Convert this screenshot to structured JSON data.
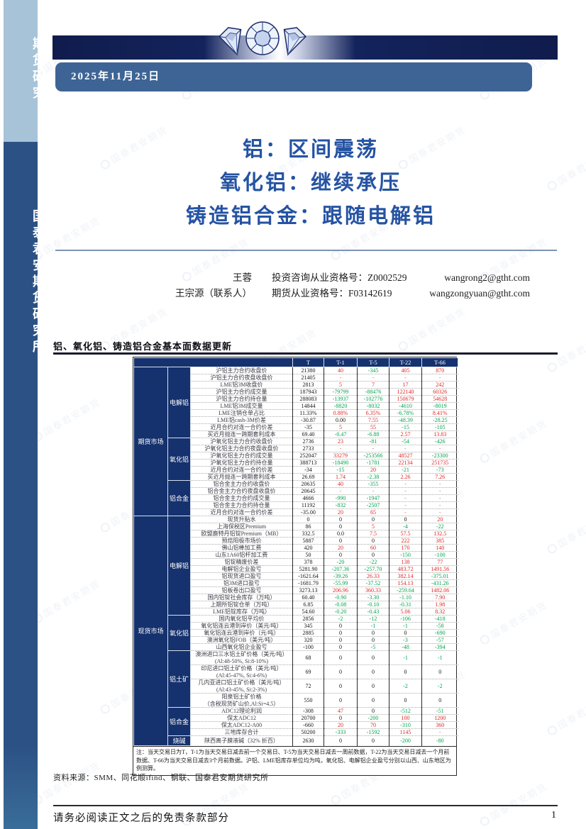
{
  "sidebar": {
    "top_label": "期货研究",
    "bottom_label": "国泰君安期货研究所"
  },
  "header": {
    "date": "2025年11月25日",
    "gem_icon": "diamond-gems"
  },
  "titles": {
    "line1": "铝：区间震荡",
    "line2": "氧化铝：继续承压",
    "line3": "铸造铝合金：跟随电解铝"
  },
  "authors": [
    {
      "name": "王蓉",
      "cert": "投资咨询从业资格号：Z0002529",
      "email": "wangrong2@gtht.com"
    },
    {
      "name": "王宗源（联系人）",
      "cert": "期货从业资格号：F03142619",
      "email": "wangzongyuan@gtht.com"
    }
  ],
  "table": {
    "caption": "铝、氧化铝、铸造铝合金基本面数据更新",
    "columns": [
      "T",
      "T-1",
      "T-5",
      "T-22",
      "T-66"
    ],
    "groups": [
      {
        "label": "期货市场",
        "subgroups": [
          {
            "label": "电解铝",
            "rows": [
              {
                "label": "沪铝主力合约收盘价",
                "cells": [
                  "21380|k",
                  "40|r",
                  "-345|g",
                  "405|r",
                  "870|r"
                ]
              },
              {
                "label": "沪铝主力合约夜盘收盘价",
                "cells": [
                  "21405|k",
                  "-|d",
                  "-|d",
                  "-|d",
                  "-|d"
                ]
              },
              {
                "label": "LME铝3M收盘价",
                "cells": [
                  "2813|k",
                  "5|r",
                  "7|r",
                  "17|r",
                  "242|r"
                ]
              },
              {
                "label": "沪铝主力合约成交量",
                "cells": [
                  "187943|k",
                  "-79799|g",
                  "-88476|g",
                  "122140|r",
                  "60326|r"
                ]
              },
              {
                "label": "沪铝主力合约持仓量",
                "cells": [
                  "288083|k",
                  "-13937|g",
                  "-102776|g",
                  "150679|r",
                  "54628|r"
                ]
              },
              {
                "label": "LME铝3M成交量",
                "cells": [
                  "14844|k",
                  "-8820|g",
                  "-8032|g",
                  "-4610|g",
                  "-8019|g"
                ]
              },
              {
                "label": "LME注销仓单占比",
                "cells": [
                  "11.33%|k",
                  "0.88%|r",
                  "6.35%|r",
                  "-6.78%|g",
                  "8.41%|r"
                ]
              },
              {
                "label": "LME铝cash-3M价差",
                "cells": [
                  "-30.87|k",
                  "0.00|k",
                  "7.55|r",
                  "-48.39|g",
                  "-28.25|g"
                ]
              },
              {
                "label": "近月合约对连一合约价差",
                "cells": [
                  "-35|k",
                  "5|r",
                  "55|r",
                  "-15|g",
                  "-105|g"
                ]
              },
              {
                "label": "买近月抛连一跨期套利成本",
                "cells": [
                  "69.40|k",
                  "-0.47|g",
                  "-6.88|g",
                  "2.57|r",
                  "13.83|r"
                ]
              }
            ]
          },
          {
            "label": "氧化铝",
            "rows": [
              {
                "label": "沪氧化铝主力合约收盘价",
                "cells": [
                  "2736|k",
                  "23|r",
                  "-81|g",
                  "-54|g",
                  "-426|g"
                ]
              },
              {
                "label": "沪氧化铝主力合约夜盘收盘价",
                "cells": [
                  "2733|k",
                  "-|d",
                  "-|d",
                  "-|d",
                  "-|d"
                ]
              },
              {
                "label": "沪氧化铝主力合约成交量",
                "cells": [
                  "252047|k",
                  "33279|r",
                  "-253566|g",
                  "48527|r",
                  "-23300|g"
                ]
              },
              {
                "label": "沪氧化铝主力合约持仓量",
                "cells": [
                  "388713|k",
                  "-18490|g",
                  "-1781|g",
                  "22134|r",
                  "251735|r"
                ]
              },
              {
                "label": "近月合约对连一合约价差",
                "cells": [
                  "-34|k",
                  "-15|g",
                  "20|r",
                  "-21|g",
                  "-73|g"
                ]
              },
              {
                "label": "买近月抛连一跨期套利成本",
                "cells": [
                  "26.69|k",
                  "1.74|r",
                  "-2.38|g",
                  "2.26|r",
                  "7.26|r"
                ]
              }
            ]
          },
          {
            "label": "铝合金",
            "rows": [
              {
                "label": "铝合金主力合约收盘价",
                "cells": [
                  "20635|k",
                  "40|r",
                  "-355|g",
                  "-|d",
                  "-|d"
                ]
              },
              {
                "label": "铝合金主力合约夜盘收盘价",
                "cells": [
                  "20645|k",
                  "-|d",
                  "-|d",
                  "-|d",
                  "-|d"
                ]
              },
              {
                "label": "铝合金主力合约成交量",
                "cells": [
                  "4666|k",
                  "-990|g",
                  "-1947|g",
                  "-|d",
                  "-|d"
                ]
              },
              {
                "label": "铝合金主力合约持仓量",
                "cells": [
                  "11192|k",
                  "-832|g",
                  "-2507|g",
                  "-|d",
                  "-|d"
                ]
              },
              {
                "label": "近月合约对连一合约价差",
                "cells": [
                  "-35.00|k",
                  "20|r",
                  "65|r",
                  "-|d",
                  "-|d"
                ]
              }
            ]
          }
        ]
      },
      {
        "label": "现货市场",
        "subgroups": [
          {
            "label": "电解铝",
            "rows": [
              {
                "label": "现货升贴水",
                "cells": [
                  "0|k",
                  "0|k",
                  "0|k",
                  "0|k",
                  "20|r"
                ]
              },
              {
                "label": "上海保税区Premium",
                "cells": [
                  "86|k",
                  "0|k",
                  "5|r",
                  "-4|g",
                  "-22|g"
                ]
              },
              {
                "label": "欧盟鹿特丹铝锭Premium（MB）",
                "cells": [
                  "332.5|k",
                  "0.0|k",
                  "7.5|r",
                  "57.5|r",
                  "132.5|r"
                ]
              },
              {
                "label": "预焙阳极市场价",
                "cells": [
                  "5887|k",
                  "0|k",
                  "0|k",
                  "222|r",
                  "385|r"
                ]
              },
              {
                "label": "佛山铝棒加工费",
                "cells": [
                  "420|k",
                  "20|r",
                  "60|r",
                  "170|r",
                  "140|r"
                ]
              },
              {
                "label": "山东1A60铝杆加工费",
                "cells": [
                  "50|k",
                  "0|k",
                  "0|k",
                  "-150|g",
                  "-100|g"
                ]
              },
              {
                "label": "铝锭精废价差",
                "cells": [
                  "378|k",
                  "-20|g",
                  "-22|g",
                  "138|r",
                  "77|r"
                ]
              },
              {
                "label": "电解铝企业盈亏",
                "cells": [
                  "5281.90|k",
                  "-207.36|g",
                  "-257.70|g",
                  "483.72|r",
                  "1491.56|r"
                ]
              },
              {
                "label": "铝现货进口盈亏",
                "cells": [
                  "-1621.64|k",
                  "-39.26|g",
                  "26.33|r",
                  "382.14|r",
                  "-375.01|g"
                ]
              },
              {
                "label": "铝3M进口盈亏",
                "cells": [
                  "-1681.79|k",
                  "-55.99|g",
                  "-37.52|g",
                  "154.13|r",
                  "-431.26|g"
                ]
              },
              {
                "label": "铝板卷出口盈亏",
                "cells": [
                  "3273.13|k",
                  "206.96|r",
                  "360.33|r",
                  "-259.64|g",
                  "1482.06|r"
                ]
              },
              {
                "label": "国内铝锭社会库存（万吨）",
                "cells": [
                  "60.40|k",
                  "-0.90|g",
                  "-3.30|g",
                  "-1.10|g",
                  "7.90|r"
                ]
              },
              {
                "label": "上期所铝锭仓单（万吨）",
                "cells": [
                  "6.85|k",
                  "-0.08|g",
                  "-0.10|g",
                  "-0.31|g",
                  "1.98|r"
                ]
              },
              {
                "label": "LME铝锭库存（万吨）",
                "cells": [
                  "54.60|k",
                  "-0.20|g",
                  "-0.43|g",
                  "5.06|r",
                  "8.32|r"
                ]
              }
            ]
          },
          {
            "label": "氧化铝",
            "rows": [
              {
                "label": "国内氧化铝平均价",
                "cells": [
                  "2856|k",
                  "-2|g",
                  "-12|g",
                  "-106|g",
                  "-418|g"
                ]
              },
              {
                "label": "氧化铝连云港到岸价（美元/吨）",
                "cells": [
                  "345|k",
                  "0|k",
                  "-1|g",
                  "-1|g",
                  "-58|g"
                ]
              },
              {
                "label": "氧化铝连云港到岸价（元/吨）",
                "cells": [
                  "2885|k",
                  "0|k",
                  "0|k",
                  "0|k",
                  "-690|g"
                ]
              },
              {
                "label": "澳洲氧化铝FOB（美元/吨）",
                "cells": [
                  "320|k",
                  "0|k",
                  "0|k",
                  "-3|g",
                  "-57|g"
                ]
              },
              {
                "label": "山西氧化铝企业盈亏",
                "cells": [
                  "-100|k",
                  "0|k",
                  "-5|g",
                  "-48|g",
                  "-394|g"
                ]
              }
            ]
          },
          {
            "label": "铝土矿",
            "rows": [
              {
                "label": "澳洲进口三水铝土矿价格（美元/吨）",
                "label2": "(Al:48-50%, Si:8-10%)",
                "cells": [
                  "68|k",
                  "0|k",
                  "0|k",
                  "-1|g",
                  "-1|g"
                ]
              },
              {
                "label": "印尼进口铝土矿价格（美元/吨）",
                "label2": "(Al:45-47%, Si:4-6%)",
                "cells": [
                  "69|k",
                  "0|k",
                  "0|k",
                  "0|k",
                  "0|k"
                ]
              },
              {
                "label": "几内亚进口铝土矿价格（美元/吨）",
                "label2": "(Al:43-45%, Si:2-3%)",
                "cells": [
                  "72|k",
                  "0|k",
                  "0|k",
                  "-2|g",
                  "-2|g"
                ]
              },
              {
                "label": "阳泉铝土矿价格",
                "label2": "（含税现货矿山价,Al:Si=4.5）",
                "cells": [
                  "550|k",
                  "0|k",
                  "0|k",
                  "0|k",
                  "0|k"
                ]
              }
            ]
          },
          {
            "label": "铝合金",
            "rows": [
              {
                "label": "ADC12理论利润",
                "cells": [
                  "-308|k",
                  "47|r",
                  "0|k",
                  "-512|g",
                  "-51|g"
                ]
              },
              {
                "label": "保太ADC12",
                "cells": [
                  "20700|k",
                  "0|k",
                  "-200|g",
                  "100|r",
                  "1200|r"
                ]
              },
              {
                "label": "保太ADC12-A00",
                "cells": [
                  "-660|k",
                  "20|r",
                  "70|r",
                  "-310|g",
                  "360|r"
                ]
              },
              {
                "label": "三地库存合计",
                "cells": [
                  "50200|k",
                  "-333|g",
                  "-1592|g",
                  "1145|r",
                  "-|d"
                ]
              }
            ]
          },
          {
            "label": "烧碱",
            "rows": [
              {
                "label": "陕西离子膜液碱（32% 折百）",
                "cells": [
                  "2630|k",
                  "0|k",
                  "0|k",
                  "-200|g",
                  "-80|g"
                ]
              }
            ]
          }
        ]
      }
    ],
    "note": "注：当天交易日为T，T-1为当天交易日减去前一个交易日、T-5为当天交易日减去一周前数据，T-22为当天交易日减去一个月前数据、T-66为当天交易日减去3个月前数据。沪铝、LME铝库存单位均为吨，氧化铝、电解铝企业盈亏分别以山西、山东地区为例测算。"
  },
  "footer": {
    "source": "资料来源：SMM、同花顺ifind、钢联、国泰君安期货研究所",
    "disclaimer": "请务必阅读正文之后的免责条款部分",
    "page": "1"
  },
  "watermark": {
    "text": "国泰君安期货"
  },
  "colors": {
    "up_red": "#e02626",
    "down_green": "#00a44e",
    "dash_red": "#d26868",
    "table_navy": "#15316e",
    "sidebar_bottom": "#2c5285",
    "sidebar_top": "#a6c3d8",
    "date_bar": "#3e6495",
    "title_blue": "#2553a3"
  }
}
